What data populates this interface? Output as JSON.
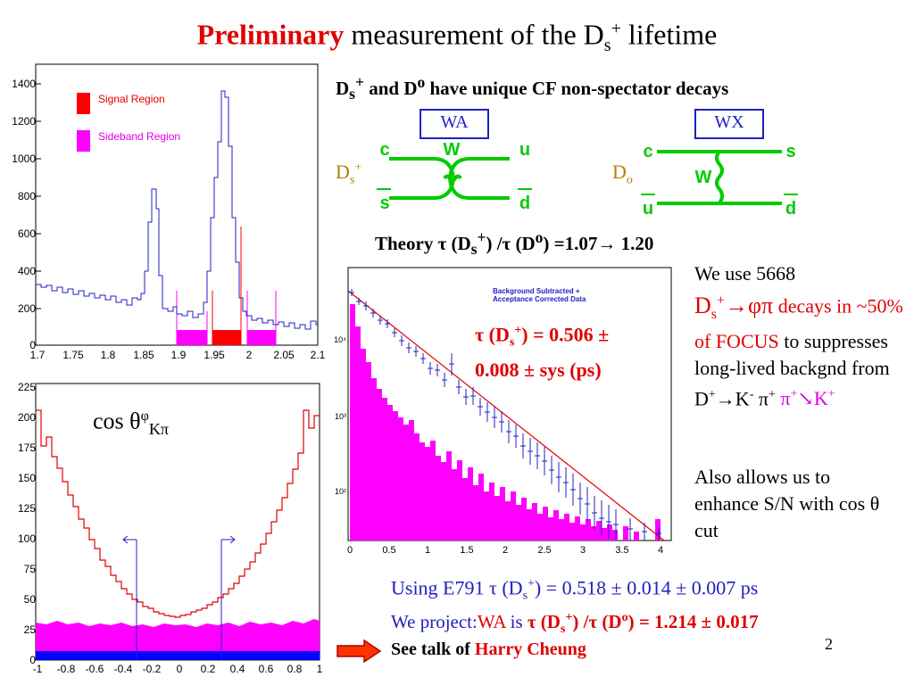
{
  "slide": {
    "title_bold": "Preliminary",
    "title_rest": "measurement of the D",
    "title_sub": "s",
    "title_sup": "+",
    "title_end": " lifetime",
    "page_number": "2"
  },
  "mass_plot": {
    "legend_signal": "Signal Region",
    "legend_sideband": "Sideband Region",
    "colors": {
      "signal": "#ff0000",
      "sideband": "#ff00ff",
      "line": "#2020c0"
    }
  },
  "cos_plot": {
    "label": "cos θ",
    "label_sup": "φ",
    "label_sub": "Kπ"
  },
  "diagrams": {
    "heading_a": "D",
    "heading_sub": "s",
    "heading_sup": "+",
    "heading_b": " and D",
    "heading_sup2": "o",
    "heading_c": "  have unique CF non-spectator decays",
    "wa_label": "WA",
    "wx_label": "WX",
    "wa_quarks": {
      "c": "c",
      "s": "s",
      "u": "u",
      "d": "d",
      "w": "W"
    },
    "wx_quarks": {
      "c": "c",
      "u": "u",
      "s": "s",
      "d": "d",
      "w": "W"
    },
    "ds_label": "D",
    "ds_sub": "s",
    "ds_sup": "+",
    "d0_label": "D",
    "d0_sub": "o"
  },
  "theory": {
    "a": "Theory τ (D",
    "sub": "s",
    "sup": "+",
    "b": ") /τ (D",
    "sup2": "o",
    "c": ") =1.07→ 1.20"
  },
  "lifetime_plot": {
    "caption_1": "Background Subtracted +",
    "caption_2": "Acceptance Corrected Data",
    "result_a": "τ (D",
    "result_sub": "s",
    "result_sup": "+",
    "result_b": ") = 0.506 ±",
    "result_line2": "0.008 ± sys (ps)"
  },
  "notes": {
    "p1_a": "We use 5668",
    "p1_b": "D",
    "p1_b_sub": "s",
    "p1_b_sup": "+",
    "p1_c": "→φπ",
    "p1_d": " decays in",
    "p1_e": "~50% of FOCUS",
    "p1_f": " to suppresses long-lived backgnd from D",
    "p1_g_sup": "+",
    "p1_h": "→K",
    "p1_h_sup": "-",
    "p1_i": " π",
    "p1_i_sup": "+",
    "p1_j": " π",
    "p1_j_sup": "+",
    "p1_k": "↘",
    "p1_l": "K",
    "p1_l_sup": "+",
    "p2": "Also allows us to enhance S/N with cos θ  cut"
  },
  "bottom": {
    "line1_a": "Using E791 τ (D",
    "line1_sub": "s",
    "line1_sup": "+",
    "line1_b": ") = 0.518 ± 0.014 ± 0.007 ps",
    "line2_a": "We project:",
    "line2_b": "WA",
    "line2_c": " is ",
    "line2_d": "τ (D",
    "line2_sub": "s",
    "line2_sup": "+",
    "line2_e": ") /τ (D",
    "line2_sup2": "o",
    "line2_f": ") = 1.214 ± 0.017",
    "talk_a": "See talk of  ",
    "talk_b": "Harry Cheung"
  }
}
